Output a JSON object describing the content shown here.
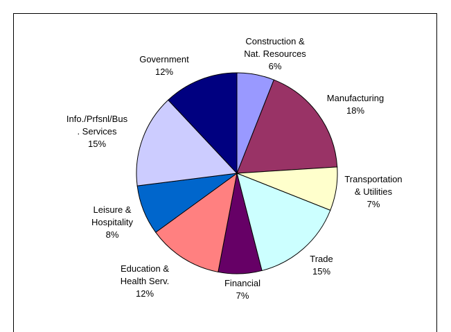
{
  "chart_data": {
    "type": "pie",
    "title": "",
    "slices": [
      {
        "label": "Construction &\nNat. Resources",
        "value": 6,
        "display": "6%",
        "color": "#9999ff"
      },
      {
        "label": "Manufacturing",
        "value": 18,
        "display": "18%",
        "color": "#993366"
      },
      {
        "label": "Transportation\n& Utilities",
        "value": 7,
        "display": "7%",
        "color": "#ffffcc"
      },
      {
        "label": "Trade",
        "value": 15,
        "display": "15%",
        "color": "#ccffff"
      },
      {
        "label": "Financial",
        "value": 7,
        "display": "7%",
        "color": "#660066"
      },
      {
        "label": "Education &\nHealth Serv.",
        "value": 12,
        "display": "12%",
        "color": "#ff8080"
      },
      {
        "label": "Leisure &\nHospitality",
        "value": 8,
        "display": "8%",
        "color": "#0066cc"
      },
      {
        "label": "Info./Prfsnl/Bus\n. Services",
        "value": 15,
        "display": "15%",
        "color": "#ccccff"
      },
      {
        "label": "Government",
        "value": 12,
        "display": "12%",
        "color": "#000080"
      }
    ]
  }
}
